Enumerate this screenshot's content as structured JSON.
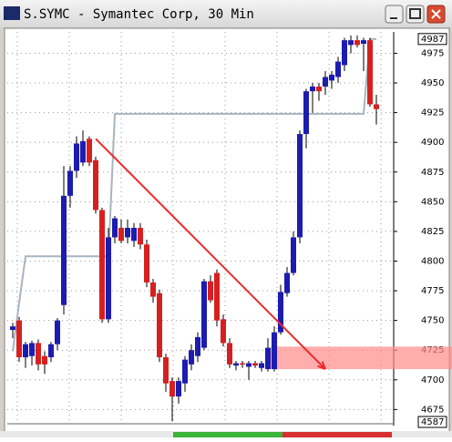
{
  "chart_data": {
    "type": "candlestick",
    "title": "S.SYMC - Symantec Corp, 30 Min",
    "up_color": "#1c1cb0",
    "down_color": "#d62020",
    "ylim": [
      4663,
      4993
    ],
    "yticks": [
      4675,
      4700,
      4725,
      4750,
      4775,
      4800,
      4825,
      4850,
      4875,
      4900,
      4925,
      4950,
      4975
    ],
    "grid": true,
    "last_price": 4987,
    "bottom_label": "4587",
    "ohlc": [
      [
        4742,
        4748,
        4735,
        4745
      ],
      [
        4750,
        4753,
        4715,
        4719
      ],
      [
        4719,
        4732,
        4710,
        4730
      ],
      [
        4720,
        4733,
        4712,
        4731
      ],
      [
        4731,
        4734,
        4708,
        4713
      ],
      [
        4720,
        4724,
        4705,
        4713
      ],
      [
        4719,
        4732,
        4715,
        4730
      ],
      [
        4730,
        4752,
        4725,
        4750
      ],
      [
        4763,
        4880,
        4755,
        4855
      ],
      [
        4855,
        4880,
        4845,
        4876
      ],
      [
        4876,
        4905,
        4870,
        4899
      ],
      [
        4883,
        4910,
        4880,
        4901
      ],
      [
        4903,
        4905,
        4880,
        4883
      ],
      [
        4885,
        4888,
        4840,
        4843
      ],
      [
        4843,
        4845,
        4748,
        4751
      ],
      [
        4751,
        4828,
        4748,
        4820
      ],
      [
        4820,
        4838,
        4815,
        4836
      ],
      [
        4828,
        4835,
        4815,
        4817
      ],
      [
        4820,
        4835,
        4815,
        4828
      ],
      [
        4817,
        4832,
        4812,
        4828
      ],
      [
        4828,
        4832,
        4810,
        4814
      ],
      [
        4814,
        4818,
        4778,
        4782
      ],
      [
        4782,
        4785,
        4765,
        4770
      ],
      [
        4773,
        4776,
        4715,
        4719
      ],
      [
        4719,
        4722,
        4690,
        4697
      ],
      [
        4699,
        4702,
        4665,
        4686
      ],
      [
        4686,
        4702,
        4680,
        4699
      ],
      [
        4697,
        4720,
        4690,
        4717
      ],
      [
        4713,
        4730,
        4708,
        4725
      ],
      [
        4720,
        4740,
        4715,
        4736
      ],
      [
        4727,
        4785,
        4725,
        4783
      ],
      [
        4783,
        4788,
        4765,
        4767
      ],
      [
        4790,
        4793,
        4745,
        4750
      ],
      [
        4751,
        4755,
        4728,
        4731
      ],
      [
        4731,
        4735,
        4710,
        4713
      ],
      [
        4712,
        4716,
        4708,
        4714
      ],
      [
        4714,
        4716,
        4710,
        4713
      ],
      [
        4711,
        4716,
        4700,
        4714
      ],
      [
        4714,
        4716,
        4710,
        4712
      ],
      [
        4710,
        4716,
        4707,
        4714
      ],
      [
        4709,
        4735,
        4707,
        4727
      ],
      [
        4709,
        4745,
        4707,
        4740
      ],
      [
        4740,
        4780,
        4738,
        4774
      ],
      [
        4773,
        4795,
        4770,
        4790
      ],
      [
        4790,
        4825,
        4788,
        4820
      ],
      [
        4820,
        4910,
        4815,
        4907
      ],
      [
        4907,
        4945,
        4895,
        4943
      ],
      [
        4943,
        4950,
        4925,
        4947
      ],
      [
        4947,
        4950,
        4935,
        4943
      ],
      [
        4947,
        4960,
        4940,
        4955
      ],
      [
        4952,
        4960,
        4945,
        4957
      ],
      [
        4955,
        4972,
        4950,
        4968
      ],
      [
        4965,
        4988,
        4960,
        4986
      ],
      [
        4982,
        4990,
        4975,
        4986
      ],
      [
        4986,
        4990,
        4980,
        4982
      ],
      [
        4983,
        4988,
        4960,
        4986
      ],
      [
        4986,
        4988,
        4930,
        4932
      ],
      [
        4932,
        4940,
        4915,
        4928
      ]
    ],
    "indicator": {
      "color": "#a8b4c0",
      "values": [
        4724,
        4765,
        4804,
        4804,
        4804,
        4804,
        4804,
        4804,
        4804,
        4804,
        4804,
        4804,
        4804,
        4804,
        4804,
        4804,
        4924,
        4924,
        4924,
        4924,
        4924,
        4924,
        4924,
        4924,
        4924,
        4924,
        4924,
        4924,
        4924,
        4924,
        4924,
        4924,
        4924,
        4924,
        4924,
        4924,
        4924,
        4924,
        4924,
        4924,
        4924,
        4924,
        4924,
        4924,
        4924,
        4924,
        4924,
        4924,
        4924,
        4924,
        4924,
        4924,
        4924,
        4924,
        4924,
        4924,
        4987,
        4987
      ]
    },
    "trendline": {
      "color": "#ee2a2a",
      "from": [
        13,
        4903
      ],
      "to": [
        49,
        4709
      ]
    },
    "zone": {
      "color": "#ff8a8a",
      "start_index": 41,
      "ymin": 4709,
      "ymax": 4728
    }
  }
}
